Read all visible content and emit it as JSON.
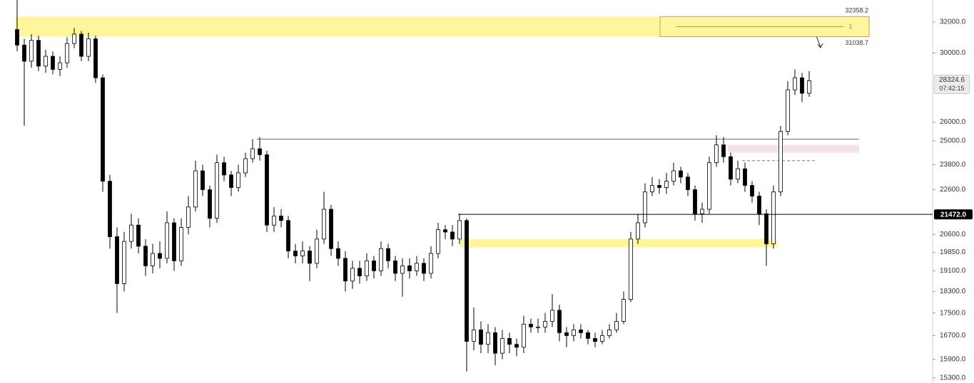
{
  "chart_data": {
    "type": "candlestick",
    "log_scale": true,
    "ylim": [
      15136,
      33490
    ],
    "yticks": [
      {
        "value": 15300,
        "label": "15300.0"
      },
      {
        "value": 15900,
        "label": "15900.0"
      },
      {
        "value": 16700,
        "label": "16700.0"
      },
      {
        "value": 17500,
        "label": "17500.0"
      },
      {
        "value": 18300,
        "label": "18300.0"
      },
      {
        "value": 19100,
        "label": "19100.0"
      },
      {
        "value": 19850,
        "label": "19850.0"
      },
      {
        "value": 20600,
        "label": "20600.0"
      },
      {
        "value": 22600,
        "label": "22600.0"
      },
      {
        "value": 23800,
        "label": "23800.0"
      },
      {
        "value": 25000,
        "label": "25000.0"
      },
      {
        "value": 26000,
        "label": "26000.0"
      },
      {
        "value": 30000,
        "label": "30000.0"
      },
      {
        "value": 32000,
        "label": "32000.0"
      }
    ],
    "up_color": "#ffffff",
    "down_color": "#000000",
    "open": [
      31500,
      30500,
      29500,
      30800,
      29200,
      29800,
      29000,
      29400,
      30600,
      31200,
      29800,
      30900,
      28500,
      23000,
      20500,
      18600,
      20300,
      21000,
      20100,
      19300,
      19800,
      19600,
      21100,
      19500,
      20900,
      21800,
      23500,
      22600,
      21300,
      23900,
      23300,
      22700,
      23400,
      24100,
      24600,
      24300,
      21000,
      21400,
      21200,
      19900,
      19700,
      19900,
      19400,
      20400,
      21700,
      20000,
      19600,
      18700,
      19200,
      18900,
      19500,
      19100,
      20000,
      19500,
      19000,
      19300,
      19100,
      19400,
      19000,
      19800,
      20800,
      20700,
      20400,
      21200,
      16500,
      16900,
      16400,
      16800,
      16100,
      16600,
      16400,
      16300,
      17100,
      17000,
      17000,
      17200,
      17600,
      16800,
      16700,
      16900,
      16800,
      16600,
      16500,
      16700,
      16900,
      17200,
      18000,
      20400,
      21100,
      22500,
      22800,
      22700,
      23000,
      23500,
      23200,
      22600,
      21500,
      21700,
      23900,
      24800,
      24200,
      23100,
      23600,
      22800,
      22300,
      21500,
      20200,
      22500,
      25500,
      27800,
      28500,
      27600
    ],
    "high": [
      33500,
      30900,
      31200,
      31100,
      30200,
      30100,
      29800,
      31000,
      31600,
      31400,
      31300,
      31100,
      28700,
      23300,
      20900,
      20700,
      21500,
      21300,
      20400,
      20200,
      20300,
      21600,
      21300,
      21300,
      22300,
      24000,
      23800,
      22800,
      24300,
      24200,
      23500,
      23800,
      24400,
      25100,
      25200,
      24500,
      21800,
      21700,
      21400,
      20200,
      20300,
      20100,
      20800,
      22500,
      21900,
      20300,
      19900,
      19500,
      19500,
      19800,
      19700,
      20300,
      20200,
      19700,
      19600,
      19600,
      19700,
      19600,
      20100,
      21100,
      21000,
      21000,
      21500,
      21300,
      17700,
      17200,
      17100,
      17000,
      16900,
      16800,
      16600,
      17400,
      17300,
      17300,
      17500,
      18200,
      17800,
      17000,
      17100,
      17100,
      16900,
      16800,
      16900,
      17100,
      17500,
      18300,
      20700,
      21500,
      22900,
      23200,
      23100,
      23400,
      23900,
      23700,
      23400,
      22800,
      22000,
      24200,
      25300,
      25200,
      24400,
      24000,
      23900,
      23000,
      22500,
      21700,
      22800,
      25800,
      28300,
      29000,
      28800,
      28900
    ],
    "low": [
      30100,
      25800,
      29100,
      28900,
      28800,
      28700,
      28600,
      29100,
      30300,
      29500,
      29500,
      28200,
      22500,
      20000,
      17500,
      18300,
      20000,
      19800,
      18900,
      19000,
      19200,
      19400,
      19100,
      19300,
      20600,
      21600,
      22300,
      20900,
      21100,
      23000,
      22300,
      22500,
      23200,
      23900,
      24000,
      20700,
      20700,
      20900,
      19600,
      19400,
      19400,
      18700,
      19200,
      20200,
      19700,
      19300,
      18300,
      18400,
      18600,
      18700,
      18800,
      18900,
      19200,
      18700,
      18100,
      18800,
      18900,
      18700,
      18800,
      19600,
      20400,
      20100,
      20200,
      15500,
      16200,
      16100,
      16100,
      15700,
      15900,
      16100,
      16000,
      16100,
      16800,
      16800,
      16800,
      17000,
      16500,
      16300,
      16500,
      16600,
      16400,
      16300,
      16400,
      16600,
      16800,
      17100,
      17900,
      20200,
      20900,
      22300,
      22400,
      22400,
      22800,
      22900,
      22300,
      21200,
      21100,
      21500,
      23700,
      23900,
      22800,
      22900,
      22500,
      22000,
      21000,
      19300,
      20000,
      22300,
      25300,
      27500,
      27100,
      27400
    ],
    "close": [
      30500,
      29500,
      30800,
      29200,
      29800,
      29000,
      29400,
      30600,
      31200,
      29800,
      30900,
      28500,
      23000,
      20500,
      18600,
      20300,
      21000,
      20100,
      19300,
      19800,
      19600,
      21100,
      19500,
      20900,
      21800,
      23500,
      22600,
      21300,
      23900,
      23300,
      22700,
      23400,
      24100,
      24600,
      24300,
      21000,
      21400,
      21200,
      19900,
      19700,
      19900,
      19400,
      20400,
      21700,
      20000,
      19600,
      18700,
      19200,
      18900,
      19500,
      19100,
      20000,
      19500,
      19000,
      19300,
      19100,
      19400,
      19000,
      19800,
      20800,
      20700,
      20400,
      21200,
      16500,
      16900,
      16400,
      16800,
      16100,
      16600,
      16400,
      16300,
      17100,
      17000,
      17000,
      17200,
      17600,
      16800,
      16700,
      16900,
      16800,
      16600,
      16500,
      16700,
      16900,
      17200,
      18000,
      20400,
      21100,
      22500,
      22800,
      22700,
      23000,
      23500,
      23200,
      22600,
      21500,
      21700,
      23900,
      24800,
      24200,
      23100,
      23600,
      22800,
      22300,
      21500,
      20200,
      22500,
      25500,
      27800,
      28500,
      27600,
      28324.6
    ],
    "last_price": {
      "value": 28324.6,
      "label": "28324.6",
      "countdown": "07:42:15"
    },
    "price_line": {
      "value": 21472,
      "label": "21472.0",
      "color": "#000000"
    },
    "range_box": {
      "high": 32358.2,
      "low": 31038.7,
      "high_label": "32358.2",
      "low_label": "31038.7",
      "label": "1",
      "color": "#fff59d"
    },
    "zone": {
      "from": 20050,
      "to": 20400,
      "color": "#fff59d"
    },
    "pink_zone": {
      "from": 24400,
      "to": 24800,
      "color": "#f6e3e5"
    },
    "levels": [
      {
        "value": 25100,
        "color": "#a3545b",
        "dashed": false
      },
      {
        "value": 24000,
        "color": "#d9534f",
        "dashed": true
      }
    ]
  }
}
